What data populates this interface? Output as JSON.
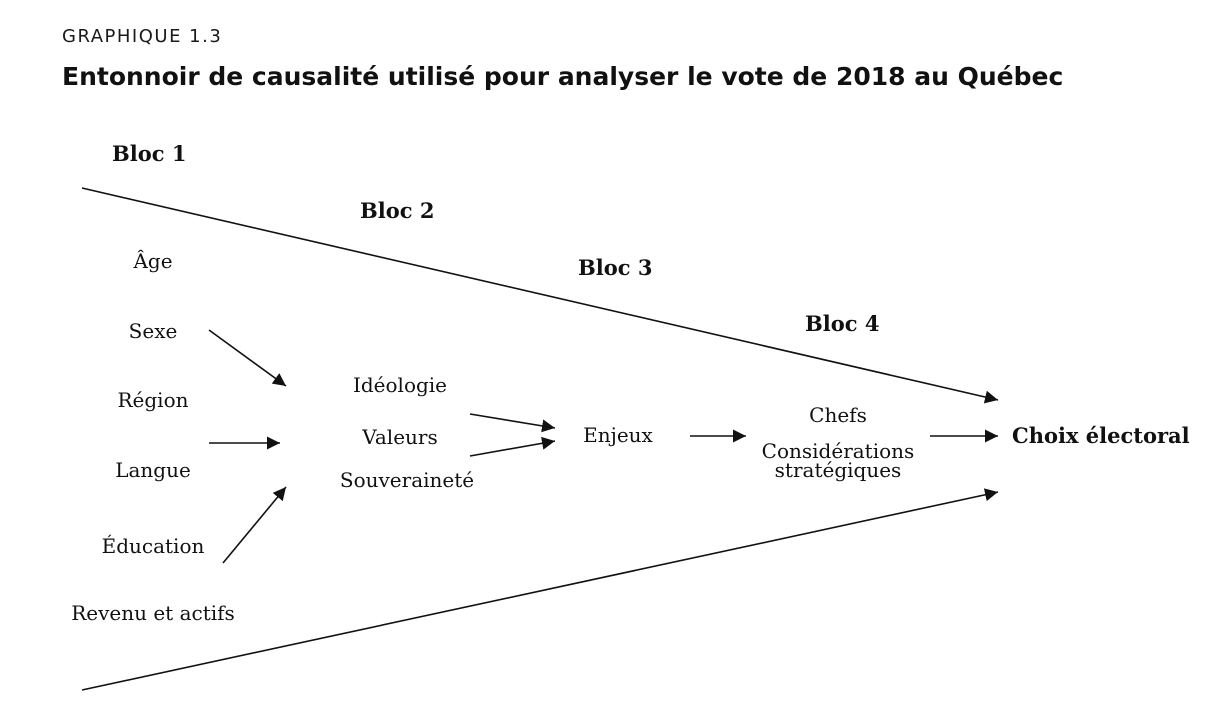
{
  "kicker": "GRAPHIQUE 1.3",
  "title": "Entonnoir de causalité utilisé pour analyser le vote de 2018 au Québec",
  "blocs": [
    "Bloc 1",
    "Bloc 2",
    "Bloc 3",
    "Bloc 4"
  ],
  "bloc1_vars": [
    "Âge",
    "Sexe",
    "Région",
    "Langue",
    "Éducation",
    "Revenu et actifs"
  ],
  "bloc2_vars": [
    "Idéologie",
    "Valeurs",
    "Souveraineté"
  ],
  "bloc3_vars": [
    "Enjeux"
  ],
  "bloc4_vars": [
    "Chefs",
    "Considérations",
    "stratégiques"
  ],
  "outcome": "Choix électoral"
}
